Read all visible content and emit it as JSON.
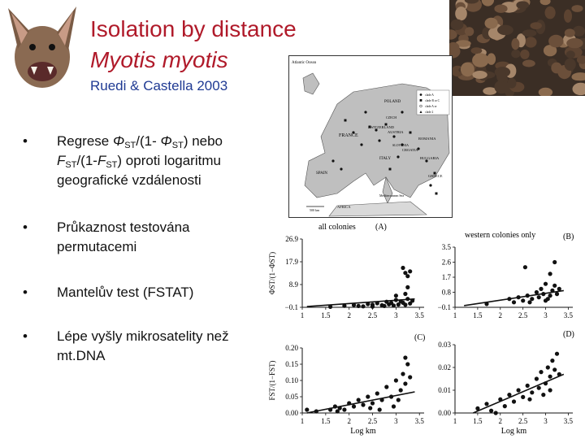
{
  "header": {
    "title_line1": "Isolation by distance",
    "title_line2": "Myotis myotis",
    "citation": "Ruedi & Castella 2003"
  },
  "bullets": [
    {
      "parts": [
        [
          "Regrese ",
          ""
        ],
        [
          "Φ",
          "i"
        ],
        [
          "ST",
          "sub"
        ],
        [
          "/(1- ",
          ""
        ],
        [
          "Φ",
          "i"
        ],
        [
          "ST",
          "sub"
        ],
        [
          ") nebo",
          ""
        ]
      ],
      "line2": [
        [
          "F",
          "i"
        ],
        [
          "ST",
          "sub"
        ],
        [
          "/(1-",
          ""
        ],
        [
          "F",
          "i"
        ],
        [
          "ST",
          "sub"
        ],
        [
          ") oproti logaritmu",
          ""
        ]
      ],
      "line3": [
        [
          "geografické vzdálenosti",
          ""
        ]
      ]
    },
    {
      "parts": [
        [
          "Průkaznost testována",
          ""
        ]
      ],
      "line2": [
        [
          "permutacemi",
          ""
        ]
      ]
    },
    {
      "parts": [
        [
          "Mantelův test (FSTAT)",
          ""
        ]
      ]
    },
    {
      "parts": [
        [
          "Lépe vyšly mikrosatelity než",
          ""
        ]
      ],
      "line2": [
        [
          "mt.DNA",
          ""
        ]
      ]
    }
  ],
  "images": {
    "bat_icon": "bat-face-icon",
    "colony_photo": "bat-colony-photo"
  },
  "map": {
    "labels": [
      "Atlantic Ocean",
      "POLAND",
      "FRANCE",
      "SWITZERLAND",
      "AUSTRIA",
      "ITALY",
      "CROATIA",
      "ROMANIA",
      "BULGARIA",
      "SPAIN",
      "GREECE",
      "Mediterranean Sea",
      "AFRICA",
      "500 km",
      "SLOVENIA",
      "CZECH"
    ],
    "legend": [
      "clade A",
      "clade B or C",
      "clade A or",
      "clade 2"
    ]
  },
  "chart_data": [
    {
      "type": "scatter",
      "title": "all colonies",
      "panel": "(A)",
      "ylabel": "ΦST/(1−ΦST)",
      "xlabel": "",
      "x_ticks": [
        "1",
        "1.5",
        "2",
        "2.5",
        "3",
        "3.5"
      ],
      "y_ticks": [
        "26.9",
        "17.9",
        "8.9",
        "−0.1"
      ],
      "xlim": [
        1,
        3.6
      ],
      "ylim": [
        -0.1,
        26.9
      ],
      "points": [
        [
          1.9,
          0.5
        ],
        [
          2.1,
          0.8
        ],
        [
          2.2,
          0.4
        ],
        [
          2.4,
          1.2
        ],
        [
          2.5,
          0.9
        ],
        [
          2.6,
          1.5
        ],
        [
          2.7,
          0.7
        ],
        [
          2.8,
          2.1
        ],
        [
          2.85,
          1.1
        ],
        [
          2.9,
          1.6
        ],
        [
          2.95,
          0.6
        ],
        [
          3.0,
          2.8
        ],
        [
          3.05,
          1.0
        ],
        [
          3.1,
          2.2
        ],
        [
          3.15,
          1.7
        ],
        [
          3.2,
          0.9
        ],
        [
          3.25,
          3.2
        ],
        [
          3.3,
          1.4
        ],
        [
          3.0,
          4.5
        ],
        [
          3.2,
          5.2
        ],
        [
          3.25,
          7.8
        ],
        [
          3.15,
          15.5
        ],
        [
          3.2,
          13.5
        ],
        [
          3.25,
          12.2
        ],
        [
          3.3,
          14.1
        ],
        [
          2.3,
          0.3
        ],
        [
          2.5,
          0.2
        ],
        [
          2.75,
          0.4
        ],
        [
          1.6,
          0.1
        ],
        [
          3.35,
          2.5
        ]
      ],
      "trend": [
        [
          1.1,
          0.2
        ],
        [
          3.4,
          3.2
        ]
      ]
    },
    {
      "type": "scatter",
      "title": "western colonies only",
      "panel": "(B)",
      "xlabel": "",
      "x_ticks": [
        "1",
        "1.5",
        "2",
        "2.5",
        "3",
        "3.5"
      ],
      "y_ticks": [
        "3.5",
        "2.6",
        "1.7",
        "0.8",
        "−0.1"
      ],
      "xlim": [
        1,
        3.6
      ],
      "ylim": [
        -0.1,
        3.5
      ],
      "points": [
        [
          1.7,
          0.1
        ],
        [
          2.2,
          0.4
        ],
        [
          2.3,
          0.2
        ],
        [
          2.4,
          0.5
        ],
        [
          2.5,
          0.3
        ],
        [
          2.55,
          2.3
        ],
        [
          2.6,
          0.6
        ],
        [
          2.7,
          0.4
        ],
        [
          2.8,
          0.8
        ],
        [
          2.85,
          0.5
        ],
        [
          2.9,
          1.0
        ],
        [
          2.95,
          0.7
        ],
        [
          3.0,
          1.3
        ],
        [
          3.05,
          0.4
        ],
        [
          3.1,
          1.9
        ],
        [
          3.15,
          0.9
        ],
        [
          3.2,
          2.6
        ],
        [
          3.2,
          1.2
        ],
        [
          3.25,
          0.7
        ],
        [
          3.3,
          1.0
        ],
        [
          2.65,
          0.2
        ],
        [
          3.0,
          0.3
        ],
        [
          3.1,
          0.6
        ]
      ],
      "trend": [
        [
          1.2,
          0.0
        ],
        [
          3.4,
          0.9
        ]
      ]
    },
    {
      "type": "scatter",
      "title": "",
      "panel": "(C)",
      "ylabel": "FST/(1−FST)",
      "xlabel": "Log km",
      "x_ticks": [
        "1",
        "1.5",
        "2",
        "2.5",
        "3",
        "3.5"
      ],
      "y_ticks": [
        "0.20",
        "0.15",
        "0.10",
        "0.05",
        "0.00"
      ],
      "xlim": [
        1,
        3.6
      ],
      "ylim": [
        0,
        0.2
      ],
      "points": [
        [
          1.1,
          0.01
        ],
        [
          1.3,
          0.005
        ],
        [
          1.6,
          0.01
        ],
        [
          1.7,
          0.02
        ],
        [
          1.8,
          0.015
        ],
        [
          1.9,
          0.01
        ],
        [
          2.0,
          0.03
        ],
        [
          2.1,
          0.02
        ],
        [
          2.2,
          0.04
        ],
        [
          2.3,
          0.025
        ],
        [
          2.4,
          0.05
        ],
        [
          2.5,
          0.03
        ],
        [
          2.6,
          0.06
        ],
        [
          2.7,
          0.04
        ],
        [
          2.8,
          0.08
        ],
        [
          2.9,
          0.05
        ],
        [
          3.0,
          0.1
        ],
        [
          3.1,
          0.07
        ],
        [
          3.15,
          0.12
        ],
        [
          3.2,
          0.09
        ],
        [
          3.25,
          0.15
        ],
        [
          3.2,
          0.17
        ],
        [
          3.3,
          0.11
        ],
        [
          2.95,
          0.02
        ],
        [
          3.05,
          0.04
        ],
        [
          2.65,
          0.01
        ],
        [
          2.45,
          0.015
        ],
        [
          1.75,
          0.005
        ]
      ],
      "trend": [
        [
          1.1,
          0.0
        ],
        [
          3.4,
          0.065
        ]
      ]
    },
    {
      "type": "scatter",
      "title": "",
      "panel": "(D)",
      "xlabel": "Log km",
      "x_ticks": [
        "1",
        "1.5",
        "2",
        "2.5",
        "3",
        "3.5"
      ],
      "y_ticks": [
        "0.03",
        "0.02",
        "0.01",
        "0.00"
      ],
      "xlim": [
        1,
        3.6
      ],
      "ylim": [
        0,
        0.03
      ],
      "points": [
        [
          1.5,
          0.002
        ],
        [
          1.7,
          0.004
        ],
        [
          1.8,
          0.001
        ],
        [
          2.0,
          0.006
        ],
        [
          2.1,
          0.003
        ],
        [
          2.2,
          0.008
        ],
        [
          2.3,
          0.005
        ],
        [
          2.4,
          0.01
        ],
        [
          2.5,
          0.007
        ],
        [
          2.6,
          0.012
        ],
        [
          2.7,
          0.009
        ],
        [
          2.8,
          0.015
        ],
        [
          2.85,
          0.011
        ],
        [
          2.9,
          0.018
        ],
        [
          3.0,
          0.013
        ],
        [
          3.05,
          0.02
        ],
        [
          3.1,
          0.016
        ],
        [
          3.15,
          0.023
        ],
        [
          3.2,
          0.019
        ],
        [
          3.25,
          0.026
        ],
        [
          3.3,
          0.017
        ],
        [
          2.95,
          0.008
        ],
        [
          2.65,
          0.006
        ],
        [
          3.1,
          0.01
        ],
        [
          1.9,
          0.0
        ]
      ],
      "trend": [
        [
          1.4,
          0.0
        ],
        [
          3.4,
          0.017
        ]
      ]
    }
  ]
}
